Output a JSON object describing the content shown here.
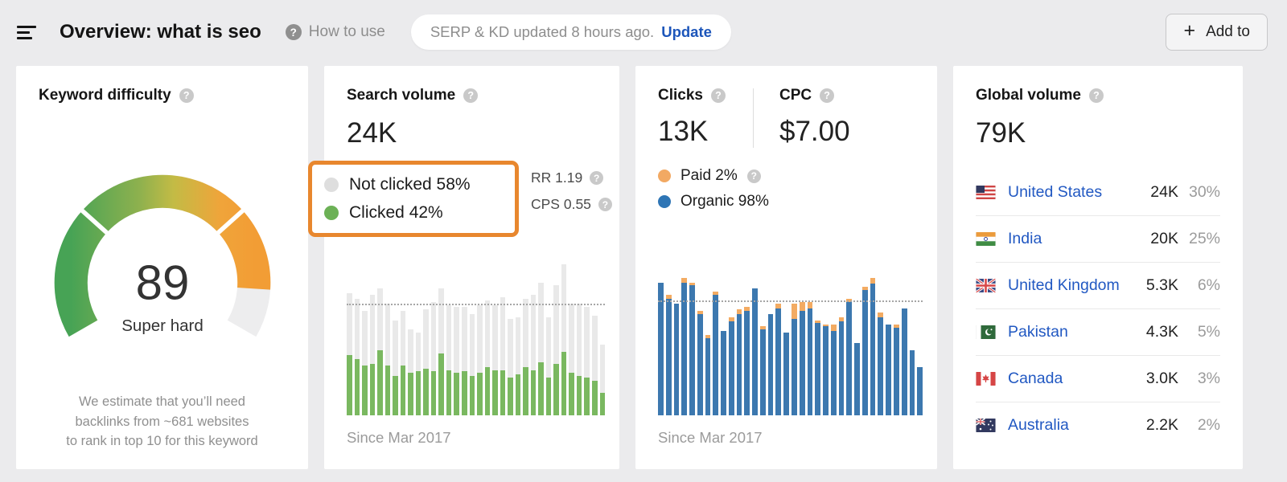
{
  "header": {
    "title": "Overview: what is seo",
    "how_to_use": "How to use",
    "update_notice": "SERP & KD updated 8 hours ago.",
    "update_action": "Update",
    "add_to": "Add to"
  },
  "keyword_difficulty": {
    "title": "Keyword difficulty",
    "score": "89",
    "label": "Super hard",
    "description_lines": [
      "We estimate that you’ll need",
      "backlinks from ~681 websites",
      "to rank in top 10 for this keyword"
    ]
  },
  "search_volume": {
    "title": "Search volume",
    "value": "24K",
    "legend": [
      {
        "label": "Not clicked 58%",
        "color": "#dedede"
      },
      {
        "label": "Clicked 42%",
        "color": "#6cb156"
      }
    ],
    "rr": "RR 1.19",
    "cps": "CPS 0.55",
    "since": "Since Mar 2017"
  },
  "clicks": {
    "title": "Clicks",
    "value": "13K",
    "cpc_title": "CPC",
    "cpc_value": "$7.00",
    "legend": [
      {
        "label": "Paid 2%",
        "color": "#f2a963"
      },
      {
        "label": "Organic 98%",
        "color": "#2e75b5"
      }
    ],
    "since": "Since Mar 2017"
  },
  "global_volume": {
    "title": "Global volume",
    "value": "79K",
    "countries": [
      {
        "flag": "us",
        "name": "United States",
        "volume": "24K",
        "share": "30%"
      },
      {
        "flag": "in",
        "name": "India",
        "volume": "20K",
        "share": "25%"
      },
      {
        "flag": "gb",
        "name": "United Kingdom",
        "volume": "5.3K",
        "share": "6%"
      },
      {
        "flag": "pk",
        "name": "Pakistan",
        "volume": "4.3K",
        "share": "5%"
      },
      {
        "flag": "ca",
        "name": "Canada",
        "volume": "3.0K",
        "share": "3%"
      },
      {
        "flag": "au",
        "name": "Australia",
        "volume": "2.2K",
        "share": "2%"
      }
    ]
  },
  "colors": {
    "highlight_orange_border": "#e8872e",
    "clicked_green": "#7ab860",
    "not_clicked_gray": "#e9e9e9",
    "organic_blue": "#3c78af",
    "paid_orange": "#f3ab62",
    "link_blue": "#2158c2",
    "update_blue": "#1d56ba"
  },
  "chart_data": [
    {
      "type": "gauge",
      "title": "Keyword difficulty",
      "value": 89,
      "max": 100,
      "label": "Super hard",
      "segment_notches_pct": [
        30,
        70
      ],
      "gradient": [
        "#47a355",
        "#a9b84c",
        "#f29d35"
      ],
      "track_color": "#ededee"
    },
    {
      "type": "bar",
      "stacked": true,
      "title": "Monthly search volume",
      "footnote": "Since Mar 2017",
      "unit": "percent of chart height",
      "guide_line_from_top_pct": 26,
      "series": [
        {
          "name": "Clicked 42%",
          "color": "#7ab860",
          "values": [
            40,
            37,
            33,
            34,
            43,
            33,
            26,
            33,
            28,
            29,
            31,
            29,
            41,
            30,
            28,
            29,
            26,
            28,
            32,
            30,
            30,
            25,
            27,
            32,
            30,
            35,
            25,
            34,
            42,
            28,
            26,
            25,
            23,
            15
          ]
        },
        {
          "name": "Not clicked 58%",
          "color": "#e9e9e9",
          "values": [
            41,
            40,
            36,
            46,
            41,
            41,
            37,
            36,
            29,
            26,
            39,
            46,
            43,
            43,
            44,
            43,
            41,
            45,
            44,
            43,
            48,
            39,
            38,
            45,
            50,
            53,
            40,
            52,
            58,
            46,
            48,
            47,
            43,
            32
          ]
        }
      ]
    },
    {
      "type": "bar",
      "stacked": true,
      "title": "Monthly clicks",
      "footnote": "Since Mar 2017",
      "unit": "percent of chart height",
      "guide_line_from_top_pct": 24,
      "series": [
        {
          "name": "Organic 98%",
          "color": "#3c78af",
          "values": [
            88,
            77,
            74,
            88,
            86,
            67,
            51,
            80,
            56,
            62,
            67,
            69,
            84,
            57,
            67,
            71,
            55,
            64,
            69,
            71,
            61,
            59,
            56,
            62,
            75,
            48,
            83,
            87,
            65,
            60,
            58,
            71,
            43,
            32
          ]
        },
        {
          "name": "Paid 2%",
          "color": "#f3ab62",
          "values": [
            0,
            3,
            0,
            3,
            2,
            2,
            2,
            2,
            0,
            3,
            3,
            3,
            0,
            2,
            0,
            3,
            0,
            10,
            6,
            4,
            2,
            1,
            4,
            3,
            2,
            0,
            2,
            4,
            3,
            0,
            2,
            0,
            0,
            0
          ]
        }
      ]
    }
  ]
}
